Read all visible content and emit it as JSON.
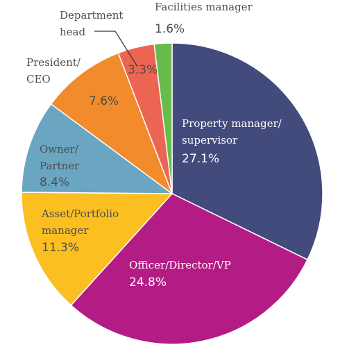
{
  "chart_data": {
    "type": "pie",
    "title": "",
    "slices": [
      {
        "label_lines": [
          "Property manager/",
          "supervisor"
        ],
        "value": 27.1,
        "value_text": "27.1%",
        "color": "#434a7c"
      },
      {
        "label_lines": [
          "Officer/Director/VP"
        ],
        "value": 24.8,
        "value_text": "24.8%",
        "color": "#b31c84"
      },
      {
        "label_lines": [
          "Asset/Portfolio",
          "manager"
        ],
        "value": 11.3,
        "value_text": "11.3%",
        "color": "#fbbf22"
      },
      {
        "label_lines": [
          "Owner/",
          "Partner"
        ],
        "value": 8.4,
        "value_text": "8.4%",
        "color": "#6aa5c1"
      },
      {
        "label_lines": [
          "President/",
          "CEO"
        ],
        "value": 7.6,
        "value_text": "7.6%",
        "color": "#f28b2c"
      },
      {
        "label_lines": [
          "Department",
          "head"
        ],
        "value": 3.3,
        "value_text": "3.3%",
        "color": "#ec6552"
      },
      {
        "label_lines": [
          "Facilities manager"
        ],
        "value": 1.6,
        "value_text": "1.6%",
        "color": "#67bc4b"
      }
    ]
  }
}
